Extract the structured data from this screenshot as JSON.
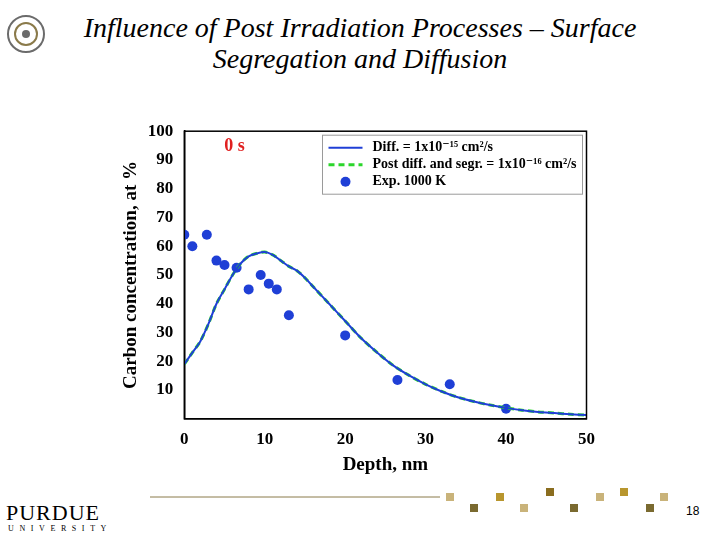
{
  "slide": {
    "title": "Influence of Post Irradiation Processes – Surface Segregation and Diffusion",
    "footer_logo": "PURDUE",
    "footer_sub": "UNIVERSITY",
    "page_number": 18
  },
  "chart_data": {
    "type": "scatter",
    "xlabel": "Depth, nm",
    "ylabel": "Carbon concentration, at %",
    "annotation": "0 s",
    "xlim": [
      0,
      50
    ],
    "xticks": [
      0,
      10,
      20,
      30,
      40,
      50
    ],
    "ylim": [
      0,
      100
    ],
    "yticks": [
      10,
      20,
      30,
      40,
      50,
      60,
      70,
      80,
      90,
      100
    ],
    "grid": false,
    "legend": "upper right",
    "series": [
      {
        "name": "Diff. = 1x10⁻¹⁵ cm²/s",
        "type": "line",
        "color": "#1f3fd6",
        "line_style": "solid",
        "x": [
          0,
          1,
          2,
          3,
          4,
          5,
          6,
          7,
          8,
          9,
          10,
          11,
          12,
          13,
          14,
          15,
          16,
          18,
          20,
          22,
          24,
          26,
          28,
          30,
          32,
          34,
          36,
          38,
          40,
          42,
          44,
          46,
          48,
          50
        ],
        "values": [
          19,
          23,
          27,
          33,
          40,
          45,
          50,
          54,
          56.5,
          57.5,
          58,
          57,
          55,
          53,
          51.5,
          49,
          46,
          40,
          34,
          28,
          23,
          18.5,
          15,
          12,
          9.5,
          7.5,
          6,
          4.8,
          3.8,
          3,
          2.4,
          2,
          1.6,
          1.3
        ]
      },
      {
        "name": "Post diff. and segr. = 1x10⁻¹⁶ cm²/s",
        "type": "line",
        "color": "#2bd62b",
        "line_style": "dashed",
        "x": [
          0,
          1,
          2,
          3,
          4,
          5,
          6,
          7,
          8,
          9,
          10,
          11,
          12,
          13,
          14,
          15,
          16,
          18,
          20,
          22,
          24,
          26,
          28,
          30,
          32,
          34,
          36,
          38,
          40,
          42,
          44,
          46,
          48,
          50
        ],
        "values": [
          19,
          23,
          27,
          33,
          40,
          45,
          50,
          54,
          56.5,
          57.5,
          58,
          57,
          55,
          53,
          51.5,
          49,
          46,
          40,
          34,
          28,
          23,
          18.5,
          15,
          12,
          9.5,
          7.5,
          6,
          4.8,
          3.8,
          3,
          2.4,
          2,
          1.6,
          1.3
        ]
      },
      {
        "name": "Exp. 1000 K",
        "type": "scatter",
        "color": "#1f3fd6",
        "marker": "circle",
        "x": [
          0,
          1,
          2.8,
          4,
          5,
          6.5,
          8,
          9.5,
          10.5,
          11.5,
          13,
          20,
          26.5,
          33,
          40
        ],
        "values": [
          64,
          60,
          64,
          55,
          53.5,
          52.5,
          45,
          50,
          47,
          45,
          36,
          29,
          13.5,
          12,
          3.5
        ]
      }
    ]
  }
}
